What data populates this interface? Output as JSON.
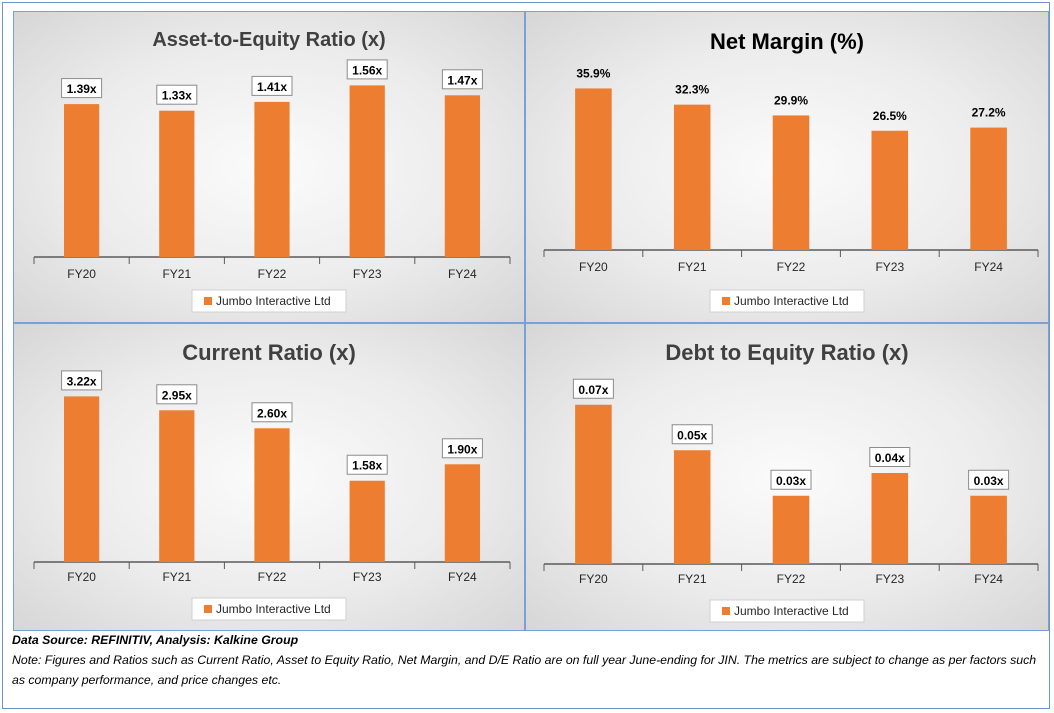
{
  "chart_data": [
    {
      "type": "bar",
      "title": "Asset-to-Equity Ratio (x)",
      "categories": [
        "FY20",
        "FY21",
        "FY22",
        "FY23",
        "FY24"
      ],
      "series": [
        {
          "name": "Jumbo Interactive Ltd",
          "values": [
            1.39,
            1.33,
            1.41,
            1.56,
            1.47
          ]
        }
      ],
      "data_labels": [
        "1.39x",
        "1.33x",
        "1.41x",
        "1.56x",
        "1.47x"
      ],
      "ylim": [
        0,
        1.7
      ],
      "legend": "bottom",
      "bar_color": "#ED7D31",
      "labels_boxed": true
    },
    {
      "type": "bar",
      "title": "Net Margin (%)",
      "categories": [
        "FY20",
        "FY21",
        "FY22",
        "FY23",
        "FY24"
      ],
      "series": [
        {
          "name": "Jumbo Interactive Ltd",
          "values": [
            35.9,
            32.3,
            29.9,
            26.5,
            27.2
          ]
        }
      ],
      "data_labels": [
        "35.9%",
        "32.3%",
        "29.9%",
        "26.5%",
        "27.2%"
      ],
      "ylim": [
        0,
        40
      ],
      "legend": "bottom",
      "bar_color": "#ED7D31",
      "labels_boxed": false
    },
    {
      "type": "bar",
      "title": "Current Ratio (x)",
      "categories": [
        "FY20",
        "FY21",
        "FY22",
        "FY23",
        "FY24"
      ],
      "series": [
        {
          "name": "Jumbo Interactive Ltd",
          "values": [
            3.22,
            2.95,
            2.6,
            1.58,
            1.9
          ]
        }
      ],
      "data_labels": [
        "3.22x",
        "2.95x",
        "2.60x",
        "1.58x",
        "1.90x"
      ],
      "ylim": [
        0,
        3.5
      ],
      "legend": "bottom",
      "bar_color": "#ED7D31",
      "labels_boxed": true
    },
    {
      "type": "bar",
      "title": "Debt to Equity Ratio (x)",
      "categories": [
        "FY20",
        "FY21",
        "FY22",
        "FY23",
        "FY24"
      ],
      "series": [
        {
          "name": "Jumbo Interactive Ltd",
          "values": [
            0.07,
            0.05,
            0.03,
            0.04,
            0.03
          ]
        }
      ],
      "data_labels": [
        "0.07x",
        "0.05x",
        "0.03x",
        "0.04x",
        "0.03x"
      ],
      "ylim": [
        0,
        0.08
      ],
      "legend": "bottom",
      "bar_color": "#ED7D31",
      "labels_boxed": true
    }
  ],
  "footer": {
    "source": "Data Source: REFINITIV, Analysis: Kalkine Group",
    "note": "Note: Figures and Ratios such as Current Ratio, Asset to Equity Ratio, Net Margin, and D/E Ratio are on full year June-ending for JIN. The metrics are subject to change as per factors such as company performance, and price changes etc."
  }
}
